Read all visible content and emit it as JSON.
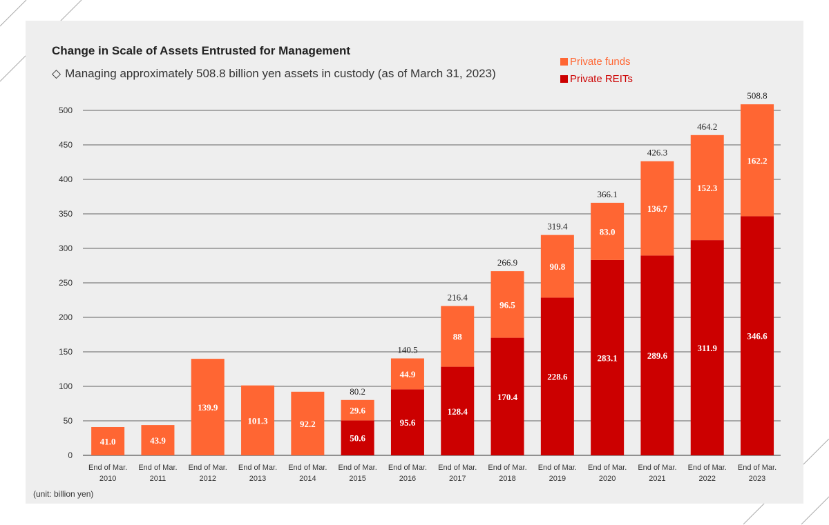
{
  "chart_data": {
    "type": "bar",
    "stacked": true,
    "title": "Change in Scale of Assets Entrusted for Management",
    "subtitle_marker": "◇",
    "subtitle": "Managing approximately 508.8 billion yen assets in custody (as of March 31, 2023)",
    "unit_note": "(unit: billion yen)",
    "categories": [
      [
        "End of Mar.",
        "2010"
      ],
      [
        "End of Mar.",
        "2011"
      ],
      [
        "End of Mar.",
        "2012"
      ],
      [
        "End of Mar.",
        "2013"
      ],
      [
        "End of Mar.",
        "2014"
      ],
      [
        "End of Mar.",
        "2015"
      ],
      [
        "End of Mar.",
        "2016"
      ],
      [
        "End of Mar.",
        "2017"
      ],
      [
        "End of Mar.",
        "2018"
      ],
      [
        "End of Mar.",
        "2019"
      ],
      [
        "End of Mar.",
        "2020"
      ],
      [
        "End of Mar.",
        "2021"
      ],
      [
        "End of Mar.",
        "2022"
      ],
      [
        "End of Mar.",
        "2023"
      ]
    ],
    "series": [
      {
        "name": "Private REITs",
        "color": "#cc0000",
        "values": [
          null,
          null,
          null,
          null,
          null,
          50.6,
          95.6,
          128.4,
          170.4,
          228.6,
          283.1,
          289.6,
          311.9,
          346.6
        ],
        "labels": [
          null,
          null,
          null,
          null,
          null,
          "50.6",
          "95.6",
          "128.4",
          "170.4",
          "228.6",
          "283.1",
          "289.6",
          "311.9",
          "346.6"
        ]
      },
      {
        "name": "Private funds",
        "color": "#ff6633",
        "values": [
          41.0,
          43.9,
          139.9,
          101.3,
          92.2,
          29.6,
          44.9,
          88,
          96.5,
          90.8,
          83.0,
          136.7,
          152.3,
          162.2
        ],
        "labels": [
          "41.0",
          "43.9",
          "139.9",
          "101.3",
          "92.2",
          "29.6",
          "44.9",
          "88",
          "96.5",
          "90.8",
          "83.0",
          "136.7",
          "152.3",
          "162.2"
        ]
      }
    ],
    "totals": [
      null,
      null,
      null,
      null,
      null,
      "80.2",
      "140.5",
      "216.4",
      "266.9",
      "319.4",
      "366.1",
      "426.3",
      "464.2",
      "508.8"
    ],
    "legend_order": [
      "Private funds",
      "Private REITs"
    ],
    "legend_position": "top-right",
    "ylim": [
      0,
      500
    ],
    "yticks": [
      0,
      50,
      100,
      150,
      200,
      250,
      300,
      350,
      400,
      450,
      500
    ],
    "grid": true
  }
}
